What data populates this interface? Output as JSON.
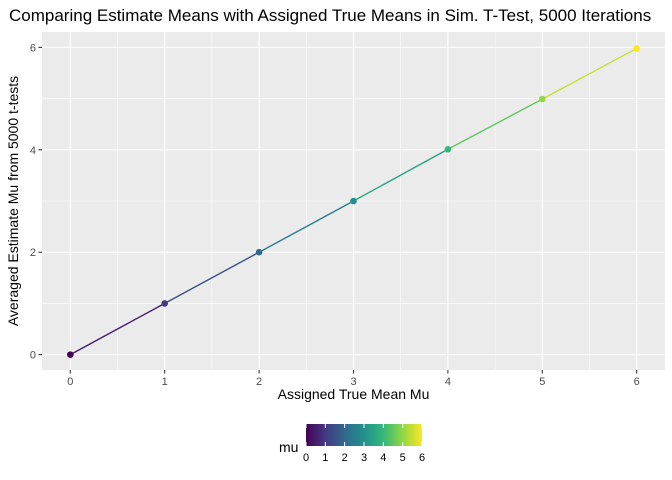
{
  "chart_data": {
    "type": "line",
    "title": "Comparing Estimate Means with Assigned True Means in Sim. T-Test, 5000 Iterations",
    "xlabel": "Assigned True Mean Mu",
    "ylabel": "Averaged Estimate Mu from 5000 t-tests",
    "x": [
      0,
      1,
      2,
      3,
      4,
      5,
      6
    ],
    "y": [
      0.0,
      1.0,
      2.0,
      3.0,
      4.01,
      4.99,
      5.98
    ],
    "xlim": [
      -0.3,
      6.3
    ],
    "ylim": [
      -0.3,
      6.3
    ],
    "xticks": [
      "0",
      "1",
      "2",
      "3",
      "4",
      "5",
      "6"
    ],
    "yticks": [
      "0",
      "2",
      "4",
      "6"
    ],
    "xtick_values": [
      0,
      1,
      2,
      3,
      4,
      5,
      6
    ],
    "ytick_values": [
      0,
      2,
      4,
      6
    ],
    "grid": true,
    "panel_background": "#ebebeb",
    "grid_color": "#ffffff",
    "color_scale": "viridis",
    "legend": {
      "title": "mu",
      "position": "bottom",
      "range": [
        0,
        6
      ],
      "ticks": [
        "0",
        "1",
        "2",
        "3",
        "4",
        "5",
        "6"
      ],
      "colors": [
        "#440154",
        "#443983",
        "#31688e",
        "#21918c",
        "#35b779",
        "#90d743",
        "#fde725"
      ]
    }
  }
}
